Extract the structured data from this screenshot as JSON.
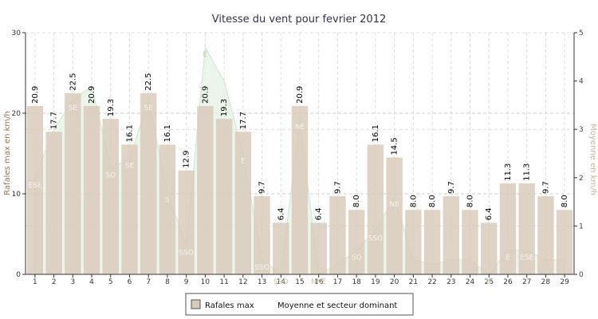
{
  "chart_data": {
    "type": "bar",
    "title": "Vitesse du vent pour fevrier 2012",
    "ylabel": "Rafales max en km/h",
    "y2label": "Moyenne en km/h",
    "ylim": [
      0,
      30
    ],
    "y2lim": [
      0,
      5
    ],
    "yticks": [
      "0",
      "10",
      "20",
      "30"
    ],
    "y2ticks": [
      "0",
      "1",
      "2",
      "3",
      "4",
      "5"
    ],
    "categories": [
      "1",
      "2",
      "3",
      "4",
      "5",
      "6",
      "7",
      "8",
      "9",
      "10",
      "11",
      "12",
      "13",
      "14",
      "15",
      "16",
      "17",
      "18",
      "19",
      "20",
      "21",
      "22",
      "23",
      "24",
      "25",
      "26",
      "27",
      "28",
      "29"
    ],
    "series": [
      {
        "name": "Rafales max",
        "type": "bar",
        "color": "#d8c9b8",
        "values": [
          20.9,
          17.7,
          22.5,
          20.9,
          19.3,
          16.1,
          22.5,
          16.1,
          12.9,
          20.9,
          19.3,
          17.7,
          9.7,
          6.4,
          20.9,
          6.4,
          9.7,
          8.0,
          16.1,
          14.5,
          8.0,
          8.0,
          9.7,
          8.0,
          6.4,
          11.3,
          11.3,
          9.7,
          8.0
        ],
        "labels": [
          "20.9",
          "17.7",
          "22.5",
          "20.9",
          "19.3",
          "16.1",
          "22.5",
          "16.1",
          "12.9",
          "20.9",
          "19.3",
          "17.7",
          "9.7",
          "6.4",
          "20.9",
          "6.4",
          "9.7",
          "8.0",
          "16.1",
          "14.5",
          "8.0",
          "8.0",
          "9.7",
          "8.0",
          "6.4",
          "11.3",
          "11.3",
          "9.7",
          "8.0"
        ]
      },
      {
        "name": "Moyenne et secteur dominant",
        "type": "area",
        "color": "#e4f2e4",
        "axis": "right",
        "values": [
          2.0,
          3.0,
          3.6,
          3.9,
          2.2,
          2.4,
          3.6,
          1.7,
          0.6,
          4.7,
          4.0,
          2.5,
          0.3,
          0.0,
          3.2,
          0.0,
          0.2,
          0.5,
          0.9,
          1.6,
          0.3,
          0.2,
          0.3,
          0.3,
          0.0,
          0.5,
          0.5,
          0.3,
          0.3
        ],
        "directions": [
          "ESE",
          "",
          "SE",
          "",
          "SO",
          "SE",
          "SE",
          "S",
          "SSO",
          "E",
          "",
          "E",
          "SSO",
          "SSO",
          "NE",
          "NNE",
          "",
          "SO",
          "SSO",
          "NE",
          "",
          "",
          "",
          "",
          "N",
          "E",
          "ESE",
          "",
          ""
        ]
      }
    ],
    "legend": {
      "placement": "bottom",
      "items": [
        {
          "label": "Rafales max",
          "swatch": "#d8c9b8"
        },
        {
          "label": "Moyenne et secteur dominant",
          "swatch": ""
        }
      ]
    },
    "grid": true
  }
}
